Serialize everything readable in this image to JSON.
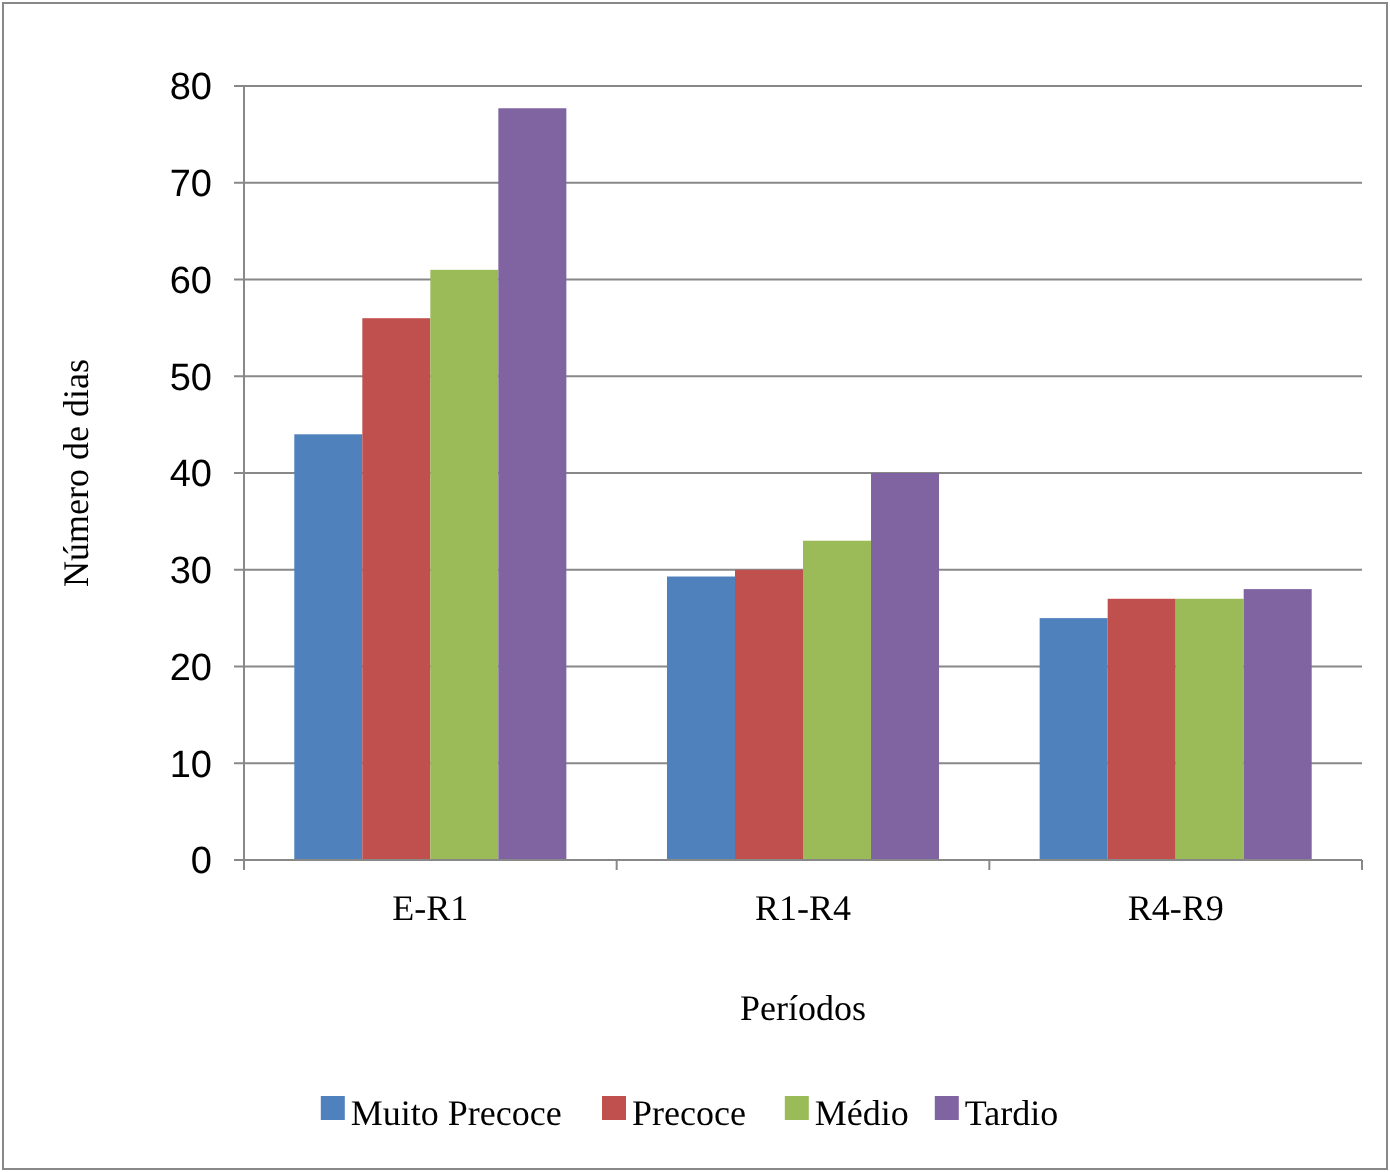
{
  "chart_data": {
    "type": "bar",
    "xlabel": "Períodos",
    "ylabel": "Número de dias",
    "categories": [
      "E-R1",
      "R1-R4",
      "R4-R9"
    ],
    "series": [
      {
        "name": "Muito Precoce",
        "color": "#4f81bd",
        "values": [
          44,
          29.3,
          25
        ]
      },
      {
        "name": "Precoce",
        "color": "#c0504d",
        "values": [
          56,
          30,
          27
        ]
      },
      {
        "name": "Médio",
        "color": "#9bbb59",
        "values": [
          61,
          33,
          27
        ]
      },
      {
        "name": "Tardio",
        "color": "#8064a2",
        "values": [
          77.7,
          40,
          28
        ]
      }
    ],
    "ylim": [
      0,
      80
    ],
    "yticks": [
      0,
      10,
      20,
      30,
      40,
      50,
      60,
      70,
      80
    ],
    "grid": "y",
    "legend": "bottom"
  }
}
